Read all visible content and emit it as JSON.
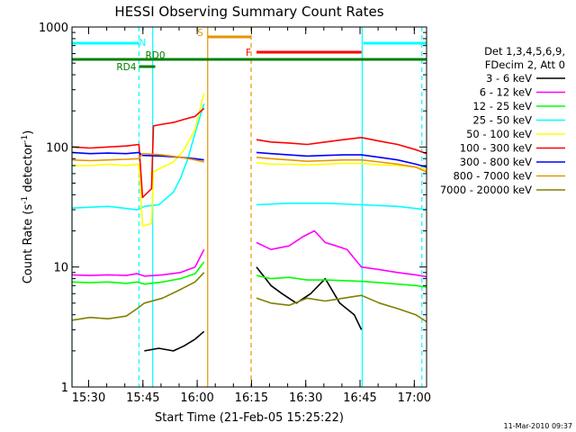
{
  "chart_data": {
    "type": "line",
    "title": "HESSI Observing Summary Count Rates",
    "xlabel": "Start Time (21-Feb-05 15:25:22)",
    "ylabel_pre": "Count Rate (s",
    "ylabel_sup1": "-1",
    "ylabel_mid": " detector",
    "ylabel_sup2": "-1",
    "ylabel_post": ")",
    "x_unit": "minutes after 15:25:22",
    "xlim": [
      0,
      98
    ],
    "ylim": [
      1,
      1000
    ],
    "y_scale": "log",
    "x_ticks": [
      {
        "label": "15:30",
        "x": 4.6
      },
      {
        "label": "15:45",
        "x": 19.6
      },
      {
        "label": "16:00",
        "x": 34.6
      },
      {
        "label": "16:15",
        "x": 49.6
      },
      {
        "label": "16:30",
        "x": 64.6
      },
      {
        "label": "16:45",
        "x": 79.6
      },
      {
        "label": "17:00",
        "x": 94.6
      }
    ],
    "y_ticks": [
      {
        "label": "1",
        "y": 1
      },
      {
        "label": "10",
        "y": 10
      },
      {
        "label": "100",
        "y": 100
      },
      {
        "label": "1000",
        "y": 1000
      }
    ],
    "legend_header": [
      "Det 1,3,4,5,6,9,",
      "FDecim 2, Att 0"
    ],
    "legend_placement": "right",
    "series": [
      {
        "name": "3 - 6 keV",
        "color": "#000000",
        "x": [
          0,
          9,
          18.5,
          20,
          24,
          28,
          31,
          34,
          36.5,
          49.5,
          51,
          55,
          58,
          62,
          66,
          70,
          74,
          78,
          80,
          80.5,
          98
        ],
        "y": [
          null,
          null,
          null,
          2.0,
          2.1,
          2.0,
          2.2,
          2.5,
          2.9,
          null,
          10,
          7,
          6,
          5,
          6,
          8,
          5,
          4,
          3,
          null,
          null
        ]
      },
      {
        "name": "6 - 12 keV",
        "color": "#ff00ff",
        "x": [
          0,
          5,
          10,
          15,
          18,
          20,
          25,
          30,
          34,
          36.5,
          49.5,
          51,
          55,
          60,
          64,
          67,
          70,
          73,
          76,
          80,
          85,
          90,
          95,
          98
        ],
        "y": [
          8.6,
          8.5,
          8.6,
          8.5,
          8.8,
          8.4,
          8.6,
          9.0,
          10,
          14,
          null,
          16,
          14,
          15,
          18,
          20,
          16,
          15,
          14,
          10,
          9.5,
          9.0,
          8.6,
          8.3
        ]
      },
      {
        "name": "12 - 25 keV",
        "color": "#00ff00",
        "x": [
          0,
          5,
          10,
          15,
          18,
          20,
          25,
          30,
          34,
          36.5,
          49.5,
          51,
          55,
          60,
          65,
          70,
          75,
          80,
          85,
          90,
          95,
          98
        ],
        "y": [
          7.5,
          7.4,
          7.5,
          7.3,
          7.5,
          7.2,
          7.5,
          8.0,
          8.8,
          11,
          null,
          8.5,
          8.0,
          8.2,
          7.8,
          7.8,
          7.7,
          7.6,
          7.4,
          7.2,
          7.0,
          6.8
        ]
      },
      {
        "name": "25 - 50 keV",
        "color": "#00ffff",
        "x": [
          0,
          10,
          18,
          20,
          24,
          28,
          30,
          32,
          34,
          36.5,
          49.5,
          51,
          60,
          70,
          80,
          90,
          98
        ],
        "y": [
          31,
          32,
          30,
          32,
          33,
          42,
          55,
          80,
          130,
          230,
          null,
          33,
          34,
          34,
          33,
          32,
          30
        ]
      },
      {
        "name": "50 - 100 keV",
        "color": "#ffff00",
        "x": [
          0,
          5,
          10,
          15,
          18.5,
          19.5,
          22,
          22.5,
          25,
          28,
          31,
          34,
          36.5,
          49.5,
          51,
          55,
          60,
          65,
          70,
          75,
          80,
          85,
          90,
          95,
          98
        ],
        "y": [
          70,
          70,
          72,
          70,
          72,
          22,
          23,
          62,
          68,
          75,
          95,
          140,
          280,
          null,
          74,
          72,
          72,
          71,
          72,
          73,
          73,
          71,
          70,
          68,
          65
        ]
      },
      {
        "name": "100 - 300 keV",
        "color": "#ff0000",
        "x": [
          0,
          5,
          10,
          15,
          18.5,
          19.5,
          22,
          22.5,
          25,
          28,
          31,
          34,
          36.5,
          49.5,
          51,
          55,
          60,
          65,
          70,
          75,
          80,
          85,
          90,
          95,
          98
        ],
        "y": [
          100,
          98,
          100,
          102,
          105,
          38,
          45,
          150,
          155,
          160,
          170,
          180,
          210,
          null,
          115,
          110,
          108,
          105,
          110,
          115,
          120,
          112,
          105,
          95,
          88
        ]
      },
      {
        "name": "300 - 800 keV",
        "color": "#0000ff",
        "x": [
          0,
          5,
          10,
          15,
          18.5,
          19.5,
          25,
          30,
          34,
          36.5,
          49.5,
          51,
          55,
          60,
          65,
          70,
          75,
          80,
          85,
          90,
          95,
          98
        ],
        "y": [
          90,
          88,
          89,
          88,
          90,
          85,
          84,
          82,
          80,
          78,
          null,
          90,
          88,
          86,
          84,
          85,
          86,
          86,
          82,
          78,
          72,
          68
        ]
      },
      {
        "name": "800 - 7000 keV",
        "color": "#e69500",
        "x": [
          0,
          5,
          10,
          15,
          18.5,
          19.5,
          25,
          30,
          34,
          36.5,
          49.5,
          51,
          55,
          60,
          65,
          70,
          75,
          80,
          85,
          90,
          95,
          98
        ],
        "y": [
          78,
          77,
          78,
          79,
          80,
          88,
          86,
          82,
          78,
          75,
          null,
          82,
          80,
          78,
          76,
          77,
          78,
          78,
          75,
          72,
          68,
          62
        ]
      },
      {
        "name": "7000 - 20000 keV",
        "color": "#808000",
        "x": [
          0,
          5,
          10,
          15,
          18,
          20,
          25,
          30,
          34,
          36.5,
          49.5,
          51,
          55,
          60,
          65,
          70,
          75,
          80,
          85,
          90,
          95,
          98
        ],
        "y": [
          3.6,
          3.8,
          3.7,
          3.9,
          4.5,
          5.0,
          5.5,
          6.5,
          7.5,
          9.0,
          null,
          5.5,
          5.0,
          4.8,
          5.5,
          5.2,
          5.5,
          5.8,
          5.0,
          4.5,
          4.0,
          3.5
        ]
      }
    ],
    "annotations": [
      {
        "label": "N",
        "color": "#00ffff",
        "segments": [
          [
            0,
            18.5
          ],
          [
            80.5,
            98
          ]
        ]
      },
      {
        "label": "S",
        "color": "#e69500",
        "segments": [
          [
            37.5,
            49.5
          ]
        ]
      },
      {
        "label": "F",
        "color": "#ff0000",
        "segments": [
          [
            51,
            80
          ]
        ]
      },
      {
        "label": "RD0",
        "color": "#008000",
        "segments": [
          [
            0,
            98
          ]
        ]
      },
      {
        "label": "RD4",
        "color": "#008000",
        "segments": [
          [
            18.5,
            23
          ]
        ]
      }
    ],
    "vlines": [
      {
        "x": 0,
        "color": "#00ffff",
        "dash": false
      },
      {
        "x": 18.5,
        "color": "#00ffff",
        "dash": true
      },
      {
        "x": 22.3,
        "color": "#00ffff",
        "dash": false
      },
      {
        "x": 37.5,
        "color": "#e69500",
        "dash": false
      },
      {
        "x": 49.5,
        "color": "#e69500",
        "dash": true
      },
      {
        "x": 80.2,
        "color": "#00ffff",
        "dash": false
      },
      {
        "x": 96.7,
        "color": "#00ffff",
        "dash": true
      }
    ]
  },
  "footer_timestamp": "11-Mar-2010 09:37"
}
